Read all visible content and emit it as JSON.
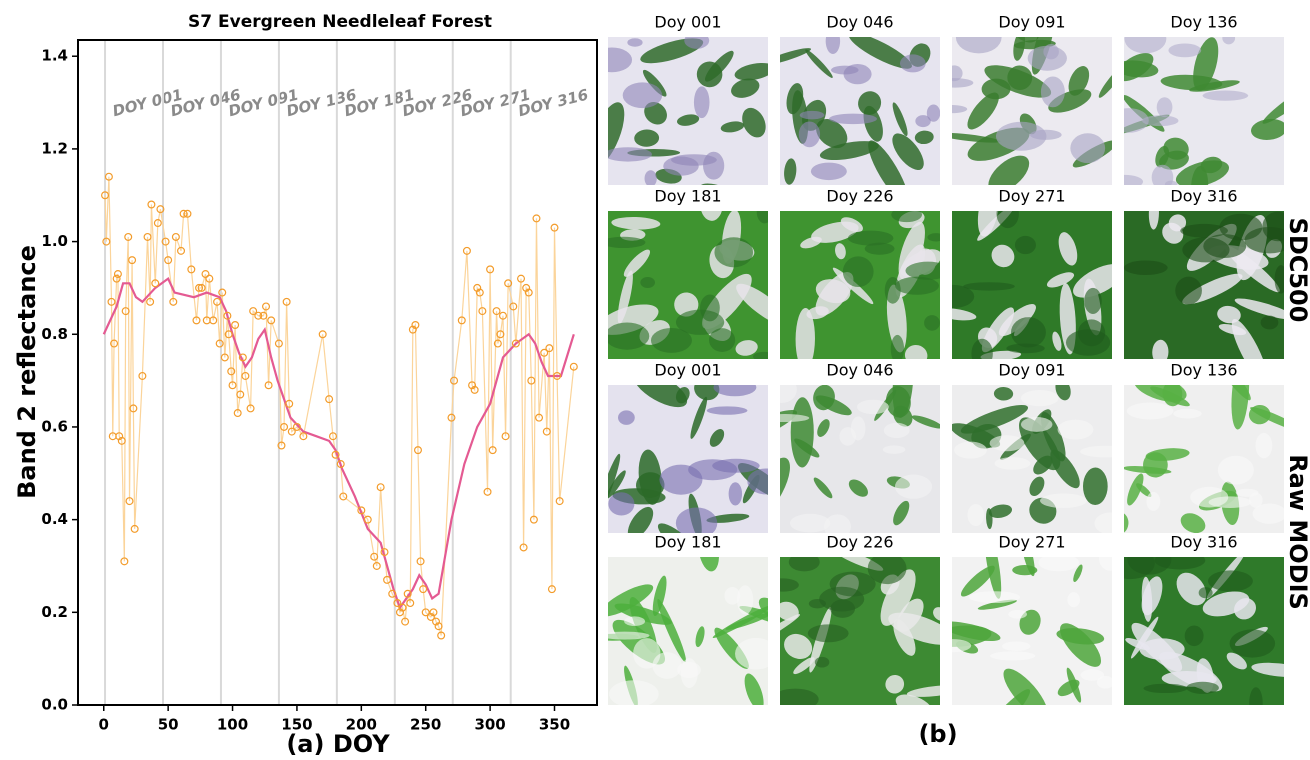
{
  "chart_data": {
    "type": "line",
    "title": "S7 Evergreen Needleleaf Forest",
    "xlabel": "(a) DOY",
    "ylabel": "Band 2 reflectance",
    "xlim": [
      -20,
      383
    ],
    "ylim": [
      0,
      1.435
    ],
    "xticks": [
      0,
      50,
      100,
      150,
      200,
      250,
      300,
      350
    ],
    "yticks": [
      {
        "value": 0,
        "label": "0.0"
      },
      0.2,
      0.4,
      0.6,
      0.8,
      {
        "value": 1,
        "label": "1.0"
      },
      1.2,
      1.4
    ],
    "vlines": [
      {
        "value": 1,
        "label": "DOY 001"
      },
      {
        "value": 46,
        "label": "DOY 046"
      },
      {
        "value": 91,
        "label": "DOY 091"
      },
      {
        "value": 136,
        "label": "DOY 136"
      },
      {
        "value": 181,
        "label": "DOY 181"
      },
      {
        "value": 226,
        "label": "DOY 226"
      },
      {
        "value": 271,
        "label": "DOY 271"
      },
      {
        "value": 316,
        "label": "DOY 316"
      }
    ],
    "series": [
      {
        "color": "#f39c2b",
        "line_color": "#fbd49a",
        "marker": "circle",
        "x": [
          1,
          2,
          4,
          6,
          7,
          8,
          10,
          11,
          12,
          14,
          16,
          17,
          19,
          20,
          22,
          23,
          24,
          30,
          34,
          36,
          37,
          40,
          42,
          44,
          48,
          50,
          54,
          56,
          60,
          62,
          65,
          68,
          72,
          74,
          76,
          79,
          80,
          82,
          85,
          88,
          90,
          92,
          94,
          96,
          97,
          99,
          100,
          102,
          104,
          106,
          108,
          110,
          114,
          116,
          120,
          124,
          126,
          128,
          130,
          136,
          138,
          140,
          142,
          144,
          146,
          150,
          155,
          170,
          175,
          178,
          180,
          184,
          186,
          200,
          205,
          210,
          212,
          215,
          218,
          220,
          224,
          228,
          230,
          232,
          234,
          236,
          238,
          240,
          242,
          244,
          246,
          248,
          250,
          254,
          256,
          258,
          260,
          262,
          270,
          272,
          278,
          282,
          286,
          288,
          290,
          292,
          294,
          298,
          300,
          302,
          305,
          306,
          308,
          310,
          312,
          314,
          318,
          320,
          324,
          326,
          328,
          330,
          332,
          334,
          336,
          338,
          342,
          344,
          346,
          348,
          350,
          352,
          354,
          365
        ],
        "values": [
          1.1,
          1.0,
          1.14,
          0.87,
          0.58,
          0.78,
          0.92,
          0.93,
          0.58,
          0.57,
          0.31,
          0.85,
          1.01,
          0.44,
          0.96,
          0.64,
          0.38,
          0.71,
          1.01,
          0.87,
          1.08,
          0.91,
          1.04,
          1.07,
          1.0,
          0.96,
          0.87,
          1.01,
          0.98,
          1.06,
          1.06,
          0.94,
          0.83,
          0.9,
          0.9,
          0.93,
          0.83,
          0.92,
          0.83,
          0.87,
          0.78,
          0.89,
          0.75,
          0.84,
          0.8,
          0.72,
          0.69,
          0.82,
          0.63,
          0.67,
          0.75,
          0.71,
          0.64,
          0.85,
          0.84,
          0.84,
          0.86,
          0.69,
          0.83,
          0.78,
          0.56,
          0.6,
          0.87,
          0.65,
          0.59,
          0.6,
          0.58,
          0.8,
          0.66,
          0.58,
          0.54,
          0.52,
          0.45,
          0.42,
          0.4,
          0.32,
          0.3,
          0.47,
          0.33,
          0.27,
          0.24,
          0.22,
          0.2,
          0.21,
          0.18,
          0.24,
          0.22,
          0.81,
          0.82,
          0.55,
          0.31,
          0.25,
          0.2,
          0.19,
          0.2,
          0.18,
          0.17,
          0.15,
          0.62,
          0.7,
          0.83,
          0.98,
          0.69,
          0.68,
          0.9,
          0.89,
          0.85,
          0.46,
          0.94,
          0.55,
          0.85,
          0.78,
          0.8,
          0.84,
          0.58,
          0.91,
          0.86,
          0.78,
          0.92,
          0.34,
          0.9,
          0.89,
          0.7,
          0.4,
          1.05,
          0.62,
          0.76,
          0.59,
          0.77,
          0.25,
          1.03,
          0.71,
          0.44,
          0.73
        ]
      },
      {
        "color": "#e45a92",
        "x": [
          0,
          10,
          15,
          20,
          25,
          30,
          40,
          50,
          55,
          70,
          80,
          90,
          95,
          100,
          105,
          110,
          115,
          120,
          125,
          130,
          135,
          140,
          145,
          155,
          165,
          175,
          180,
          185,
          195,
          205,
          215,
          220,
          225,
          230,
          235,
          240,
          245,
          250,
          255,
          260,
          265,
          270,
          280,
          290,
          300,
          310,
          320,
          330,
          335,
          340,
          345,
          355,
          365
        ],
        "values": [
          0.8,
          0.86,
          0.91,
          0.91,
          0.88,
          0.87,
          0.9,
          0.92,
          0.89,
          0.88,
          0.89,
          0.88,
          0.85,
          0.8,
          0.76,
          0.73,
          0.75,
          0.79,
          0.81,
          0.75,
          0.7,
          0.66,
          0.62,
          0.59,
          0.58,
          0.57,
          0.55,
          0.51,
          0.45,
          0.38,
          0.35,
          0.3,
          0.25,
          0.21,
          0.23,
          0.25,
          0.28,
          0.26,
          0.23,
          0.24,
          0.32,
          0.4,
          0.52,
          0.6,
          0.65,
          0.75,
          0.78,
          0.8,
          0.78,
          0.74,
          0.71,
          0.71,
          0.8
        ]
      }
    ]
  },
  "panel_b": {
    "caption": "(b)",
    "groups": [
      {
        "label": "SDC500",
        "tiles": [
          "Doy 001",
          "Doy 046",
          "Doy 091",
          "Doy 136",
          "Doy 181",
          "Doy 226",
          "Doy 271",
          "Doy 316"
        ]
      },
      {
        "label": "Raw MODIS",
        "tiles": [
          "Doy 001",
          "Doy 046",
          "Doy 091",
          "Doy 136",
          "Doy 181",
          "Doy 226",
          "Doy 271",
          "Doy 316"
        ]
      }
    ]
  }
}
